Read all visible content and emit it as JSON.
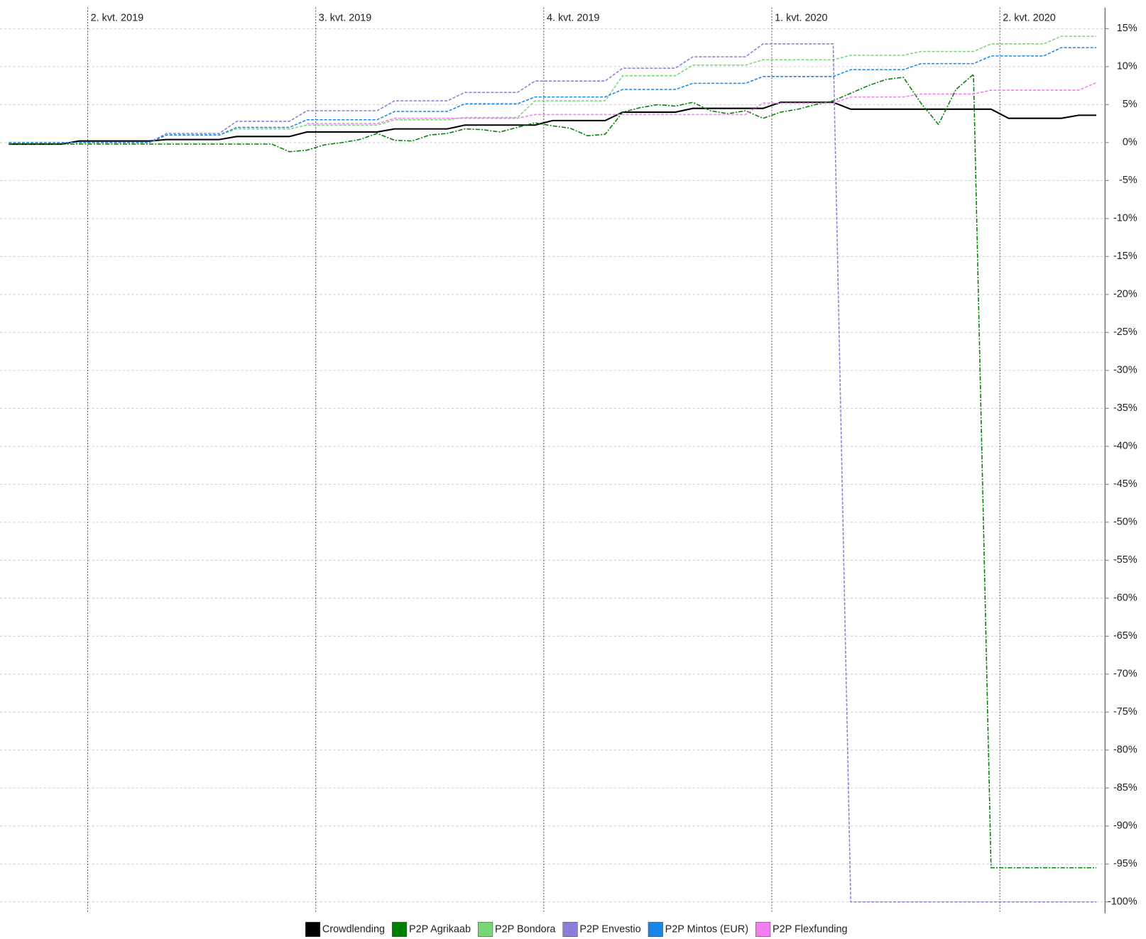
{
  "chart_data": {
    "type": "line",
    "x": [
      0,
      1,
      2,
      3,
      4,
      5,
      6,
      7,
      8,
      9,
      10,
      11,
      12,
      13,
      14,
      15,
      16,
      17,
      18,
      19,
      20,
      21,
      22,
      23,
      24,
      25,
      26,
      27,
      28,
      29,
      30,
      31,
      32,
      33,
      34,
      35,
      36,
      37,
      38,
      39,
      40,
      41,
      42,
      43,
      44,
      45,
      46,
      47,
      48,
      49,
      50,
      51,
      52,
      53,
      54,
      55,
      56,
      57,
      58,
      59,
      60,
      61,
      62
    ],
    "xlim": [
      0,
      62
    ],
    "xticks": [
      {
        "value": 4.5,
        "label": "2. kvt. 2019"
      },
      {
        "value": 17.5,
        "label": "3. kvt. 2019"
      },
      {
        "value": 30.5,
        "label": "4. kvt. 2019"
      },
      {
        "value": 43.5,
        "label": "1. kvt. 2020"
      },
      {
        "value": 56.5,
        "label": "2. kvt. 2020"
      }
    ],
    "ylim": [
      -101.5,
      17.8
    ],
    "yticks": [
      {
        "value": 15,
        "label": "15%"
      },
      {
        "value": 10,
        "label": "10%"
      },
      {
        "value": 5,
        "label": "5%"
      },
      {
        "value": 0,
        "label": "0%"
      },
      {
        "value": -5,
        "label": "-5%"
      },
      {
        "value": -10,
        "label": "-10%"
      },
      {
        "value": -15,
        "label": "-15%"
      },
      {
        "value": -20,
        "label": "-20%"
      },
      {
        "value": -25,
        "label": "-25%"
      },
      {
        "value": -30,
        "label": "-30%"
      },
      {
        "value": -35,
        "label": "-35%"
      },
      {
        "value": -40,
        "label": "-40%"
      },
      {
        "value": -45,
        "label": "-45%"
      },
      {
        "value": -50,
        "label": "-50%"
      },
      {
        "value": -55,
        "label": "-55%"
      },
      {
        "value": -60,
        "label": "-60%"
      },
      {
        "value": -65,
        "label": "-65%"
      },
      {
        "value": -70,
        "label": "-70%"
      },
      {
        "value": -75,
        "label": "-75%"
      },
      {
        "value": -80,
        "label": "-80%"
      },
      {
        "value": -85,
        "label": "-85%"
      },
      {
        "value": -90,
        "label": "-90%"
      },
      {
        "value": -95,
        "label": "-95%"
      },
      {
        "value": -100,
        "label": "-100%"
      }
    ],
    "grid": true,
    "legend": "bottom",
    "series": [
      {
        "name": "Crowdlending",
        "color": "#000000",
        "values": [
          -0.2,
          -0.2,
          -0.2,
          -0.2,
          0.2,
          0.2,
          0.2,
          0.2,
          0.2,
          0.4,
          0.4,
          0.4,
          0.4,
          0.8,
          0.8,
          0.8,
          0.8,
          1.4,
          1.4,
          1.4,
          1.4,
          1.4,
          1.8,
          1.8,
          1.8,
          1.8,
          2.3,
          2.3,
          2.3,
          2.3,
          2.3,
          2.9,
          2.9,
          2.9,
          2.9,
          4.0,
          4.0,
          4.0,
          4.0,
          4.5,
          4.5,
          4.5,
          4.5,
          4.5,
          5.3,
          5.3,
          5.3,
          5.3,
          4.4,
          4.4,
          4.4,
          4.4,
          4.4,
          4.4,
          4.4,
          4.4,
          4.4,
          3.2,
          3.2,
          3.2,
          3.2,
          3.6,
          3.6
        ]
      },
      {
        "name": "P2P Agrikaab",
        "color": "#008000",
        "values": [
          -0.2,
          -0.2,
          -0.2,
          -0.2,
          -0.2,
          -0.2,
          -0.2,
          -0.2,
          -0.2,
          -0.2,
          -0.2,
          -0.2,
          -0.2,
          -0.2,
          -0.2,
          -0.2,
          -1.2,
          -1.0,
          -0.3,
          0,
          0.4,
          1.2,
          0.3,
          0.2,
          1.0,
          1.2,
          1.8,
          1.7,
          1.4,
          2.0,
          2.6,
          2.2,
          1.9,
          0.9,
          1.1,
          4.0,
          4.6,
          5.0,
          4.8,
          5.3,
          4.2,
          3.8,
          4.2,
          3.2,
          4.0,
          4.4,
          5.0,
          5.5,
          6.5,
          7.5,
          8.3,
          8.6,
          5.2,
          2.4,
          7.0,
          9.0,
          -95.5,
          -95.5,
          -95.5,
          -95.5,
          -95.5,
          -95.5,
          -95.5
        ]
      },
      {
        "name": "P2P Bondora",
        "color": "#77d677",
        "values": [
          0,
          0,
          0,
          0,
          0,
          0,
          0,
          0,
          0,
          1.0,
          1.0,
          1.0,
          1.0,
          1.8,
          1.8,
          1.8,
          1.8,
          2.3,
          2.3,
          2.3,
          2.3,
          2.3,
          3.0,
          3.0,
          3.0,
          3.0,
          3.3,
          3.3,
          3.3,
          3.3,
          5.5,
          5.5,
          5.5,
          5.5,
          5.5,
          8.8,
          8.8,
          8.8,
          8.8,
          10.2,
          10.2,
          10.2,
          10.2,
          10.9,
          10.9,
          10.9,
          10.9,
          10.9,
          11.5,
          11.5,
          11.5,
          11.5,
          12.0,
          12.0,
          12.0,
          12.0,
          13.0,
          13.0,
          13.0,
          13.0,
          14.0,
          14.0,
          14.0
        ]
      },
      {
        "name": "P2P Envestio",
        "color": "#8a7fd8",
        "values": [
          0,
          0,
          0,
          0,
          0,
          0,
          0,
          0,
          0,
          1.2,
          1.2,
          1.2,
          1.2,
          2.8,
          2.8,
          2.8,
          2.8,
          4.2,
          4.2,
          4.2,
          4.2,
          4.2,
          5.5,
          5.5,
          5.5,
          5.5,
          6.6,
          6.6,
          6.6,
          6.6,
          8.1,
          8.1,
          8.1,
          8.1,
          8.1,
          9.8,
          9.8,
          9.8,
          9.8,
          11.3,
          11.3,
          11.3,
          11.3,
          13.0,
          13.0,
          13.0,
          13.0,
          13.0,
          -100,
          -100,
          -100,
          -100,
          -100,
          -100,
          -100,
          -100,
          -100,
          -100,
          -100,
          -100,
          -100,
          -100,
          -100
        ]
      },
      {
        "name": "P2P Mintos (EUR)",
        "color": "#1a86e8",
        "values": [
          0,
          0,
          0,
          0,
          0,
          0,
          0,
          0,
          0,
          1.0,
          1.0,
          1.0,
          1.0,
          2.0,
          2.0,
          2.0,
          2.0,
          3.0,
          3.0,
          3.0,
          3.0,
          3.0,
          4.1,
          4.1,
          4.1,
          4.1,
          5.1,
          5.1,
          5.1,
          5.1,
          6.0,
          6.0,
          6.0,
          6.0,
          6.0,
          7.0,
          7.0,
          7.0,
          7.0,
          7.8,
          7.8,
          7.8,
          7.8,
          8.7,
          8.7,
          8.7,
          8.7,
          8.7,
          9.6,
          9.6,
          9.6,
          9.6,
          10.4,
          10.4,
          10.4,
          10.4,
          11.4,
          11.4,
          11.4,
          11.4,
          12.5,
          12.5,
          12.5
        ]
      },
      {
        "name": "P2P Flexfunding",
        "color": "#f27ef2",
        "values": [
          null,
          null,
          null,
          null,
          null,
          null,
          null,
          null,
          null,
          null,
          null,
          null,
          null,
          null,
          null,
          null,
          null,
          2.5,
          2.5,
          2.5,
          2.5,
          2.5,
          3.2,
          3.2,
          3.2,
          3.2,
          3.2,
          3.2,
          3.2,
          3.2,
          3.7,
          3.7,
          3.7,
          3.7,
          3.7,
          3.7,
          3.7,
          3.7,
          3.7,
          3.7,
          3.7,
          3.7,
          3.7,
          5.2,
          5.2,
          5.2,
          5.2,
          5.2,
          6.0,
          6.0,
          6.0,
          6.0,
          6.4,
          6.4,
          6.4,
          6.4,
          6.9,
          6.9,
          6.9,
          6.9,
          6.9,
          6.9,
          7.9
        ]
      }
    ]
  }
}
